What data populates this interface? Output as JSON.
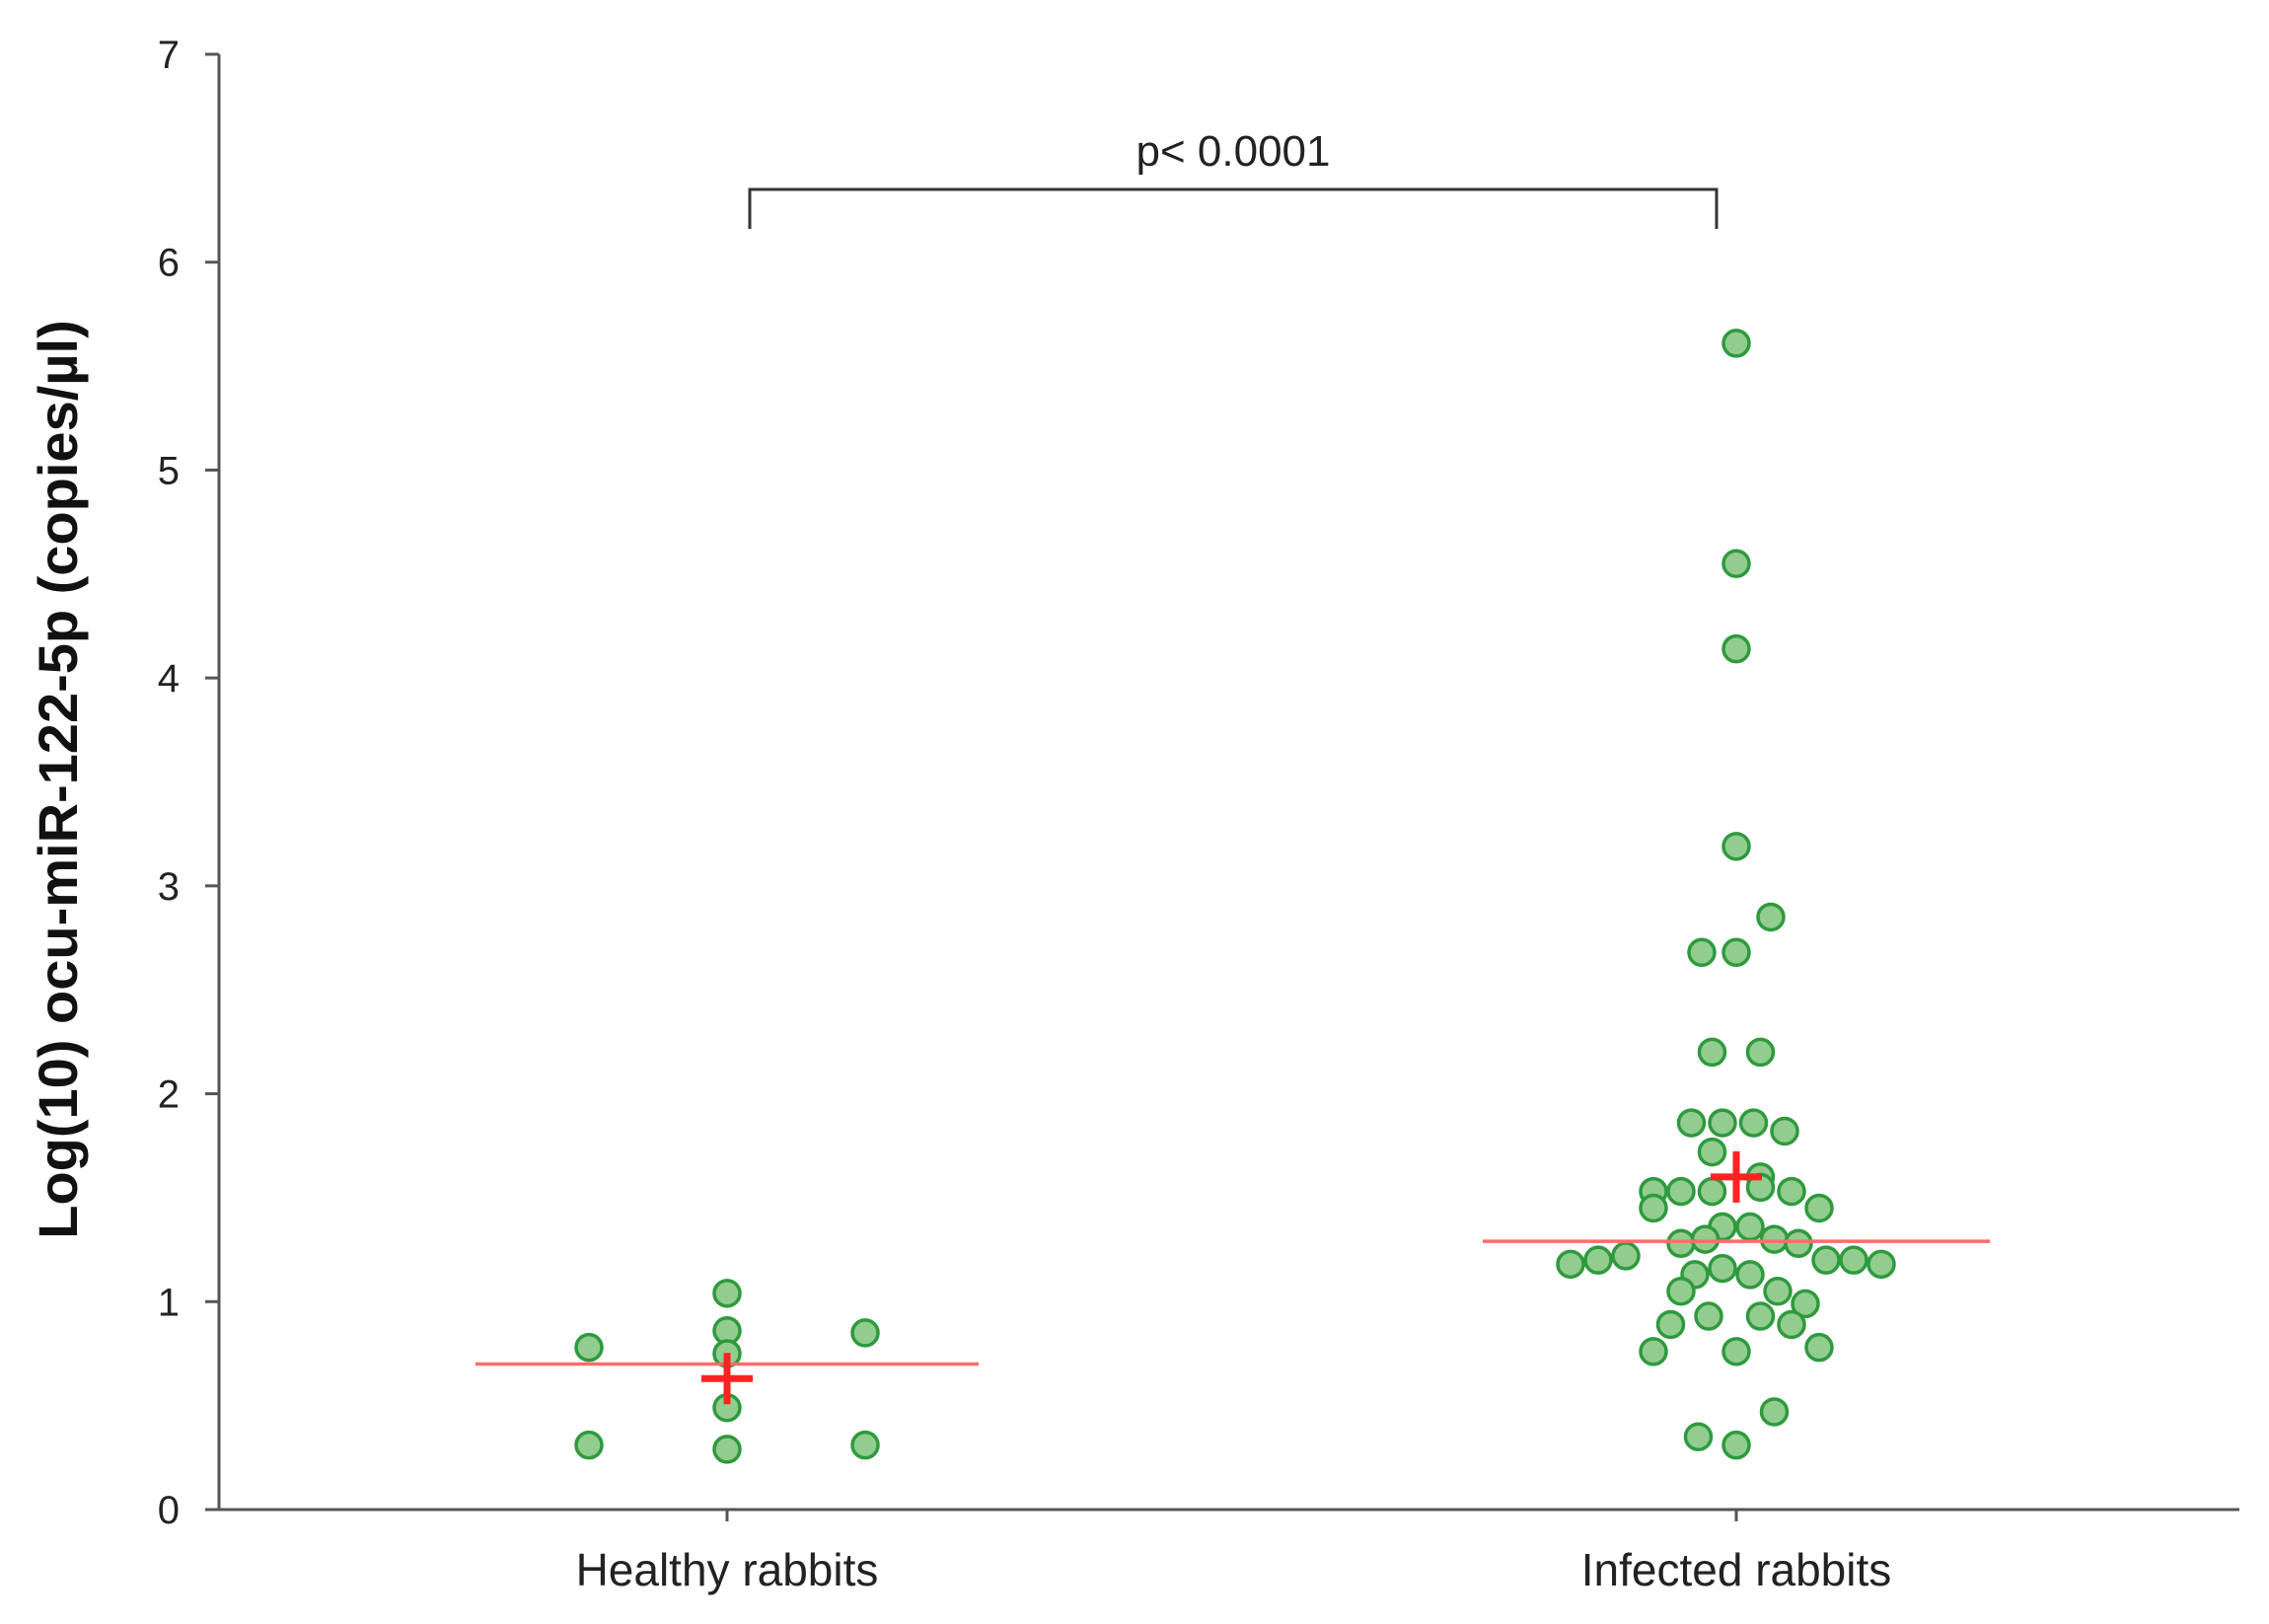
{
  "chart_data": {
    "type": "scatter",
    "ylabel": "Log(10) ocu-miR-122-5p (copies/µl)",
    "xlabel": "",
    "ylim": [
      0,
      7
    ],
    "yticks": [
      0,
      1,
      2,
      3,
      4,
      5,
      6,
      7
    ],
    "grid": false,
    "categories": [
      "Healthy rabbits",
      "Infected rabbits"
    ],
    "significance": {
      "label": "p< 0.0001",
      "between": [
        "Healthy rabbits",
        "Infected rabbits"
      ]
    },
    "colors": {
      "point_fill": "#93cc8f",
      "point_stroke": "#2e9a3e",
      "median_line": "#ff6b6b",
      "mean_marker": "#ff2222",
      "axis": "#555555"
    },
    "groups": [
      {
        "name": "Healthy rabbits",
        "median": 0.7,
        "mean": 0.63,
        "points": [
          {
            "offset": -4.0,
            "y": 0.78
          },
          {
            "offset": -4.0,
            "y": 0.31
          },
          {
            "offset": 0,
            "y": 1.04
          },
          {
            "offset": 0,
            "y": 0.86
          },
          {
            "offset": 0,
            "y": 0.75
          },
          {
            "offset": 0,
            "y": 0.49
          },
          {
            "offset": 0,
            "y": 0.29
          },
          {
            "offset": 4.0,
            "y": 0.85
          },
          {
            "offset": 4.0,
            "y": 0.31
          }
        ]
      },
      {
        "name": "Infected rabbits",
        "median": 1.29,
        "mean": 1.6,
        "points": [
          {
            "offset": 0,
            "y": 5.61
          },
          {
            "offset": 0,
            "y": 4.55
          },
          {
            "offset": 0,
            "y": 4.14
          },
          {
            "offset": 0,
            "y": 3.19
          },
          {
            "offset": 1,
            "y": 2.85
          },
          {
            "offset": -1,
            "y": 2.68
          },
          {
            "offset": 0,
            "y": 2.68
          },
          {
            "offset": -0.7,
            "y": 2.2
          },
          {
            "offset": 0.7,
            "y": 2.2
          },
          {
            "offset": -1.3,
            "y": 1.86
          },
          {
            "offset": -0.4,
            "y": 1.86
          },
          {
            "offset": 0.5,
            "y": 1.86
          },
          {
            "offset": 1.4,
            "y": 1.82
          },
          {
            "offset": -0.7,
            "y": 1.72
          },
          {
            "offset": 0.7,
            "y": 1.6
          },
          {
            "offset": -2.4,
            "y": 1.53
          },
          {
            "offset": -1.6,
            "y": 1.53
          },
          {
            "offset": -0.7,
            "y": 1.53
          },
          {
            "offset": 0.7,
            "y": 1.55
          },
          {
            "offset": 1.6,
            "y": 1.53
          },
          {
            "offset": -2.4,
            "y": 1.45
          },
          {
            "offset": 2.4,
            "y": 1.45
          },
          {
            "offset": -0.4,
            "y": 1.36
          },
          {
            "offset": 0.4,
            "y": 1.36
          },
          {
            "offset": -1.6,
            "y": 1.28
          },
          {
            "offset": -0.9,
            "y": 1.3
          },
          {
            "offset": 1.1,
            "y": 1.3
          },
          {
            "offset": 1.8,
            "y": 1.28
          },
          {
            "offset": -3.2,
            "y": 1.22
          },
          {
            "offset": -4.0,
            "y": 1.2
          },
          {
            "offset": -4.8,
            "y": 1.18
          },
          {
            "offset": 2.6,
            "y": 1.2
          },
          {
            "offset": 3.4,
            "y": 1.2
          },
          {
            "offset": 4.2,
            "y": 1.18
          },
          {
            "offset": -1.2,
            "y": 1.13
          },
          {
            "offset": -0.4,
            "y": 1.16
          },
          {
            "offset": 0.4,
            "y": 1.13
          },
          {
            "offset": -1.6,
            "y": 1.05
          },
          {
            "offset": 1.2,
            "y": 1.05
          },
          {
            "offset": 2.0,
            "y": 0.99
          },
          {
            "offset": -1.9,
            "y": 0.89
          },
          {
            "offset": -0.8,
            "y": 0.93
          },
          {
            "offset": 0.7,
            "y": 0.93
          },
          {
            "offset": 1.6,
            "y": 0.89
          },
          {
            "offset": -2.4,
            "y": 0.76
          },
          {
            "offset": 0,
            "y": 0.76
          },
          {
            "offset": 2.4,
            "y": 0.78
          },
          {
            "offset": 1.1,
            "y": 0.47
          },
          {
            "offset": -1.1,
            "y": 0.35
          },
          {
            "offset": 0,
            "y": 0.31
          }
        ]
      }
    ]
  }
}
